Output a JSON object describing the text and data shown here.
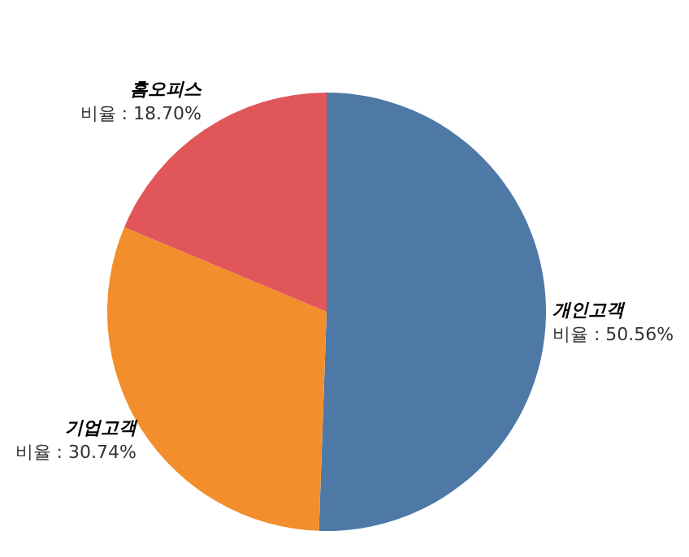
{
  "chart_data": {
    "type": "pie",
    "categories": [
      "개인고객",
      "기업고객",
      "홈오피스"
    ],
    "values": [
      50.56,
      30.74,
      18.7
    ],
    "colors": [
      "#4e79a7",
      "#f28e2b",
      "#e15759"
    ],
    "value_labels": [
      "비율 : 50.56%",
      "비율 : 30.74%",
      "비율 : 18.70%"
    ],
    "legend": false
  }
}
